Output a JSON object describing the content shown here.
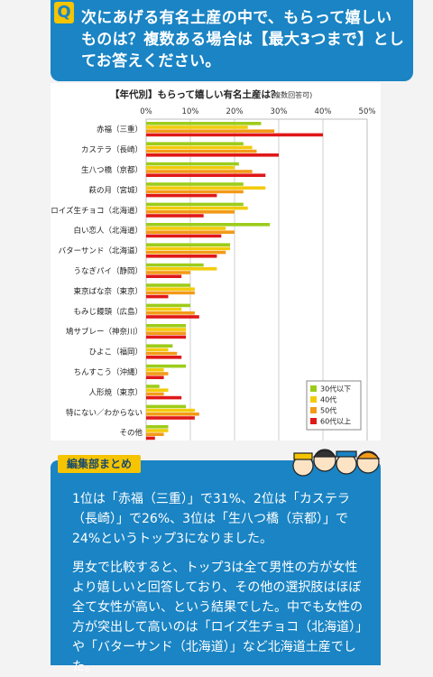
{
  "question": {
    "icon_label": "Q",
    "text": "次にあげる有名土産の中で、もらって嬉しいものは？複数ある場合は【最大3つまで】としてお答えください。"
  },
  "summary": {
    "tag": "編集部まとめ",
    "paragraph1": "1位は「赤福（三重）」で31%、2位は「カステラ（長崎）」で26%、3位は「生八つ橋（京都）」で24%というトップ3になりました。",
    "paragraph2": "男女で比較すると、トップ3は全て男性の方が女性より嬉しいと回答しており、その他の選択肢はほぼ全て女性が高い、という結果でした。中でも女性の方が突出して高いのは「ロイズ生チョコ（北海道）」や「バターサンド（北海道）」など北海道土産でした。"
  },
  "colors": {
    "accent_blue": "#1a84c4",
    "accent_yellow": "#f6c400",
    "series": [
      "#9ccc1a",
      "#f2cc0a",
      "#f39a18",
      "#e01818"
    ]
  },
  "chart_data": {
    "type": "bar",
    "orientation": "horizontal",
    "title": "【年代別】もらって嬉しい有名土産は？",
    "subtitle": "(複数回答可)",
    "categories": [
      "赤福（三重）",
      "カステラ（長崎）",
      "生八つ橋（京都）",
      "萩の月（宮城）",
      "ロイズ生チョコ（北海道）",
      "白い恋人（北海道）",
      "バターサンド（北海道）",
      "うなぎパイ（静岡）",
      "東京ばな奈（東京）",
      "もみじ饅頭（広島）",
      "鳩サブレー（神奈川）",
      "ひよこ（福岡）",
      "ちんすこう（沖縄）",
      "人形焼（東京）",
      "特にない／わからない",
      "その他"
    ],
    "series": [
      {
        "name": "30代以下",
        "values": [
          26,
          22,
          21,
          22,
          22,
          28,
          19,
          13,
          10,
          10,
          9,
          6,
          9,
          3,
          9,
          5
        ]
      },
      {
        "name": "40代",
        "values": [
          23,
          24,
          20,
          27,
          23,
          18,
          19,
          16,
          11,
          8,
          9,
          5,
          4,
          5,
          11,
          5
        ]
      },
      {
        "name": "50代",
        "values": [
          29,
          25,
          24,
          22,
          20,
          20,
          18,
          10,
          11,
          11,
          9,
          7,
          5,
          4,
          12,
          4
        ]
      },
      {
        "name": "60代以上",
        "values": [
          40,
          30,
          27,
          16,
          13,
          17,
          16,
          8,
          5,
          12,
          9,
          8,
          4,
          8,
          11,
          2
        ]
      }
    ],
    "xticks": [
      "0%",
      "10%",
      "20%",
      "30%",
      "40%",
      "50%"
    ],
    "xlim": [
      0,
      50
    ],
    "legend_position": "bottom-right",
    "grid": true
  }
}
